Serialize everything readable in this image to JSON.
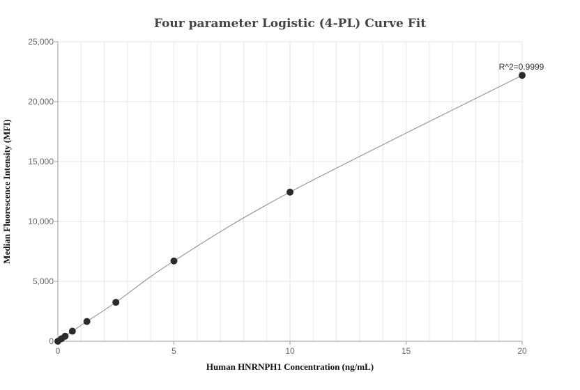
{
  "chart_data": {
    "type": "scatter",
    "title": "Four parameter Logistic (4-PL) Curve Fit",
    "xlabel": "Human HNRNPH1 Concentration (ng/mL)",
    "ylabel": "Median Fluorescence Intensity (MFI)",
    "xlim": [
      0,
      20
    ],
    "ylim": [
      0,
      25000
    ],
    "x_ticks": [
      0,
      5,
      10,
      15,
      20
    ],
    "y_ticks": [
      0,
      5000,
      10000,
      15000,
      20000,
      25000
    ],
    "x_tick_labels": [
      "0",
      "5",
      "10",
      "15",
      "20"
    ],
    "y_tick_labels": [
      "0",
      "5,000",
      "10,000",
      "15,000",
      "20,000",
      "25,000"
    ],
    "grid": true,
    "points": [
      {
        "x": 0,
        "y": 0
      },
      {
        "x": 0.156,
        "y": 210
      },
      {
        "x": 0.3125,
        "y": 420
      },
      {
        "x": 0.625,
        "y": 840
      },
      {
        "x": 1.25,
        "y": 1650
      },
      {
        "x": 2.5,
        "y": 3250
      },
      {
        "x": 5,
        "y": 6700
      },
      {
        "x": 10,
        "y": 12450
      },
      {
        "x": 20,
        "y": 22200
      }
    ],
    "annotation": {
      "text": "R^2=0.9999",
      "x": 20,
      "y": 22200
    },
    "colors": {
      "points": "#2b2b2b",
      "curve": "#888888",
      "grid": "#e6e6ee",
      "axis": "#999999"
    }
  }
}
